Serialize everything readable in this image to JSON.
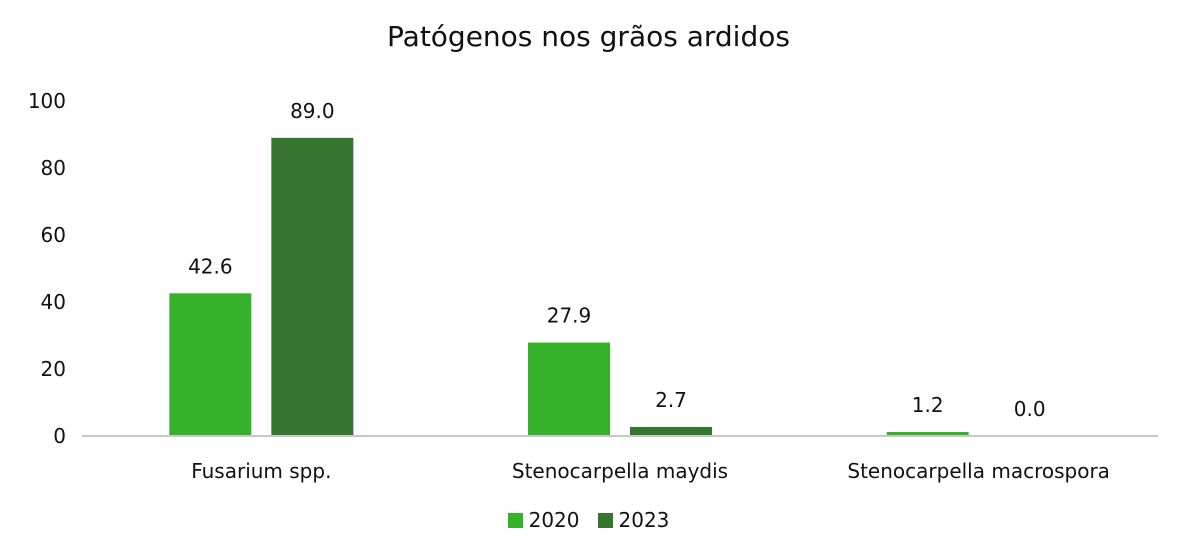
{
  "chart_data": {
    "type": "bar",
    "title": "Patógenos nos grãos ardidos",
    "xlabel": "",
    "ylabel": "",
    "categories": [
      "Fusarium spp.",
      "Stenocarpella maydis",
      "Stenocarpella macrospora"
    ],
    "series": [
      {
        "name": "2020",
        "values": [
          42.6,
          27.9,
          1.2
        ],
        "labels": [
          "42.6",
          "27.9",
          "1.2"
        ],
        "color": "#36b22a"
      },
      {
        "name": "2023",
        "values": [
          89.0,
          2.7,
          0.0
        ],
        "labels": [
          "89.0",
          "2.7",
          "0.0"
        ],
        "color": "#357530"
      }
    ],
    "ylim": [
      0,
      100
    ],
    "yticks": [
      0,
      20,
      40,
      60,
      80,
      100
    ],
    "grid": false,
    "legend_position": "bottom",
    "axis_color": "#c8c8c8"
  }
}
